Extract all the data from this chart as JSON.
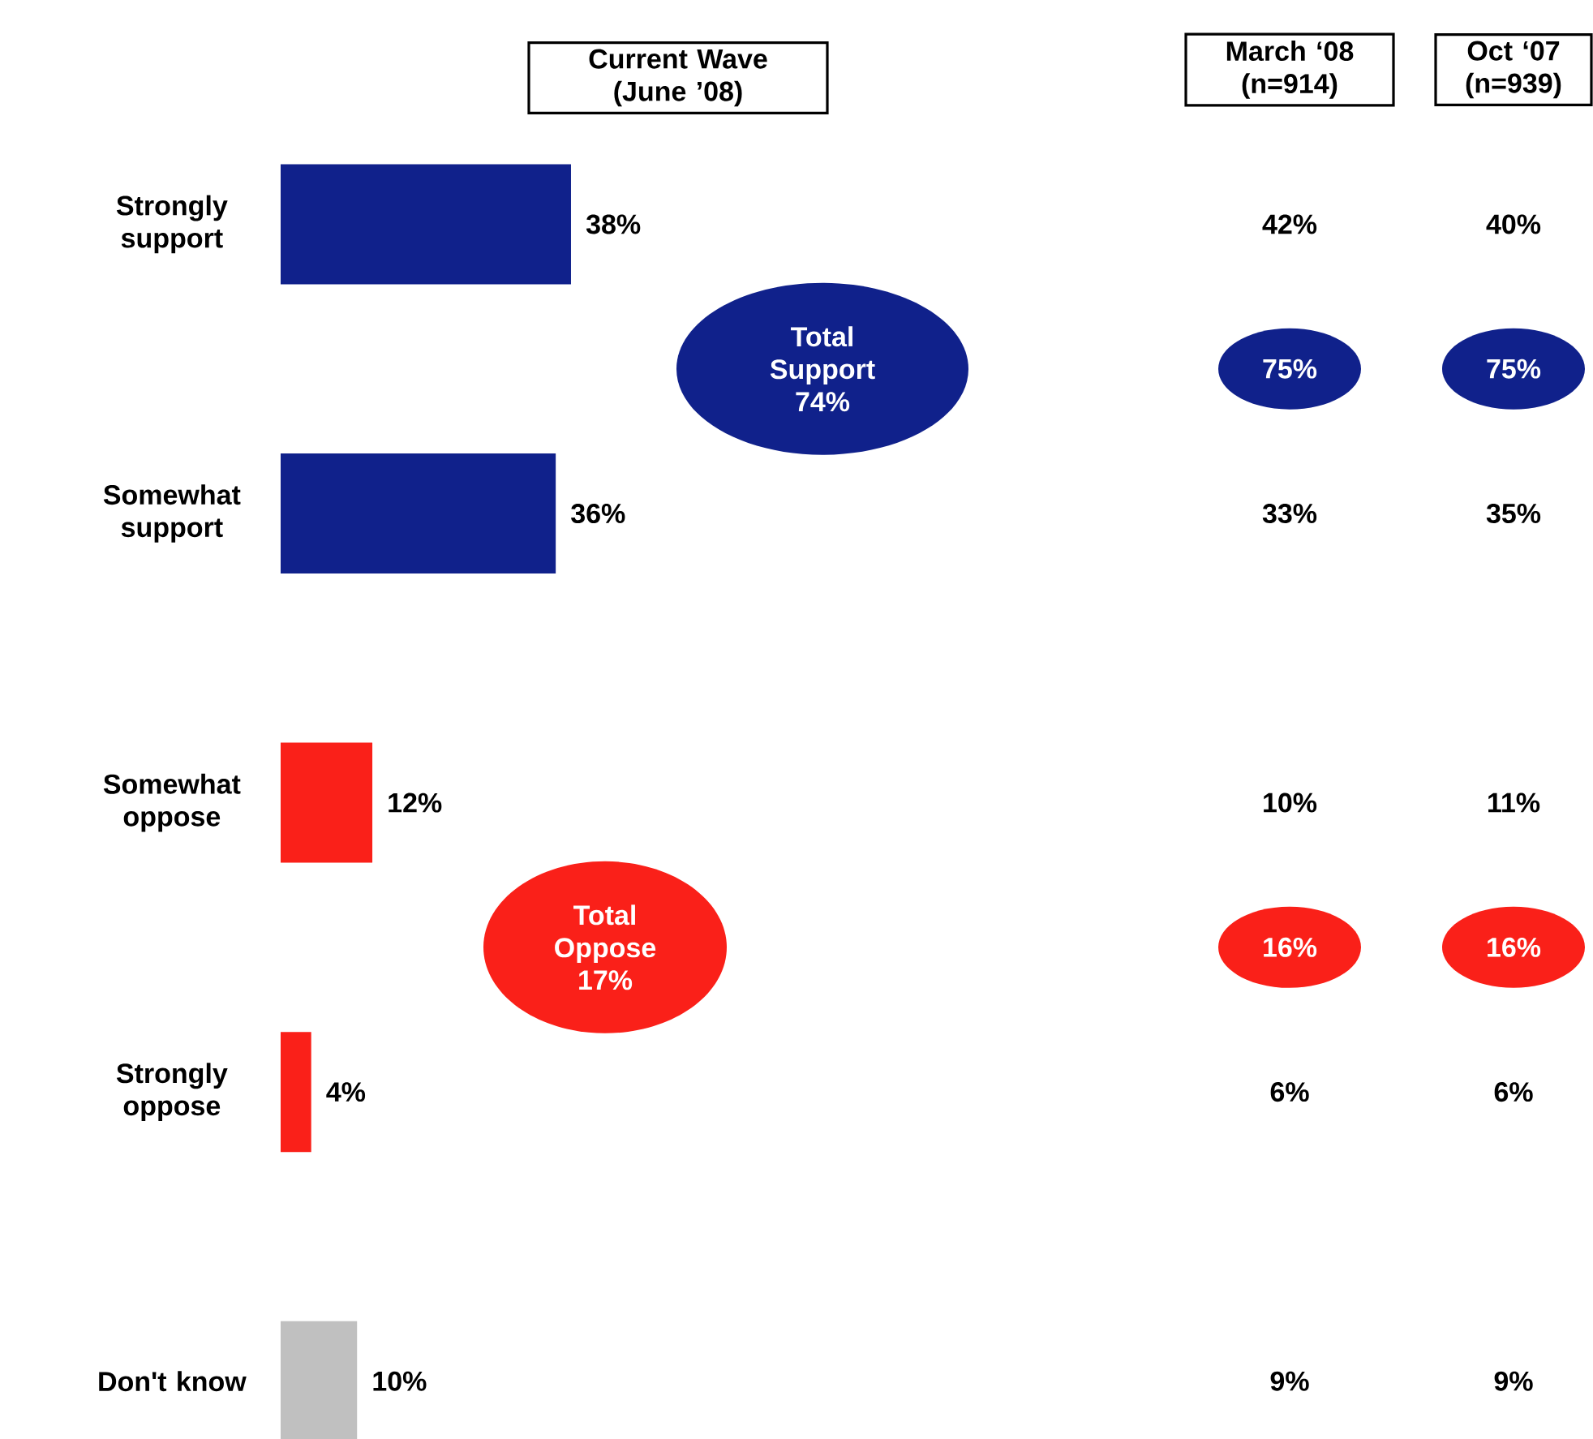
{
  "chart_data": {
    "type": "bar",
    "orientation": "horizontal",
    "title": "Current Wave (June ’08)",
    "categories": [
      "Strongly support",
      "Somewhat support",
      "Somewhat oppose",
      "Strongly oppose",
      "Don't know"
    ],
    "values": [
      38,
      36,
      12,
      4,
      10
    ],
    "value_labels": [
      "38%",
      "36%",
      "12%",
      "4%",
      "10%"
    ],
    "colors": [
      "#10218b",
      "#10218b",
      "#fa2019",
      "#fa2019",
      "#c0c0c0"
    ],
    "annotations": [
      "March ‘08 (n=914)",
      "Oct ‘07 (n=939)",
      "Total Support 74%",
      "Total Oppose 17%",
      "42%",
      "40%",
      "75%",
      "75%",
      "33%",
      "35%",
      "10%",
      "11%",
      "16%",
      "16%",
      "6%",
      "6%",
      "9%",
      "9%"
    ]
  }
}
